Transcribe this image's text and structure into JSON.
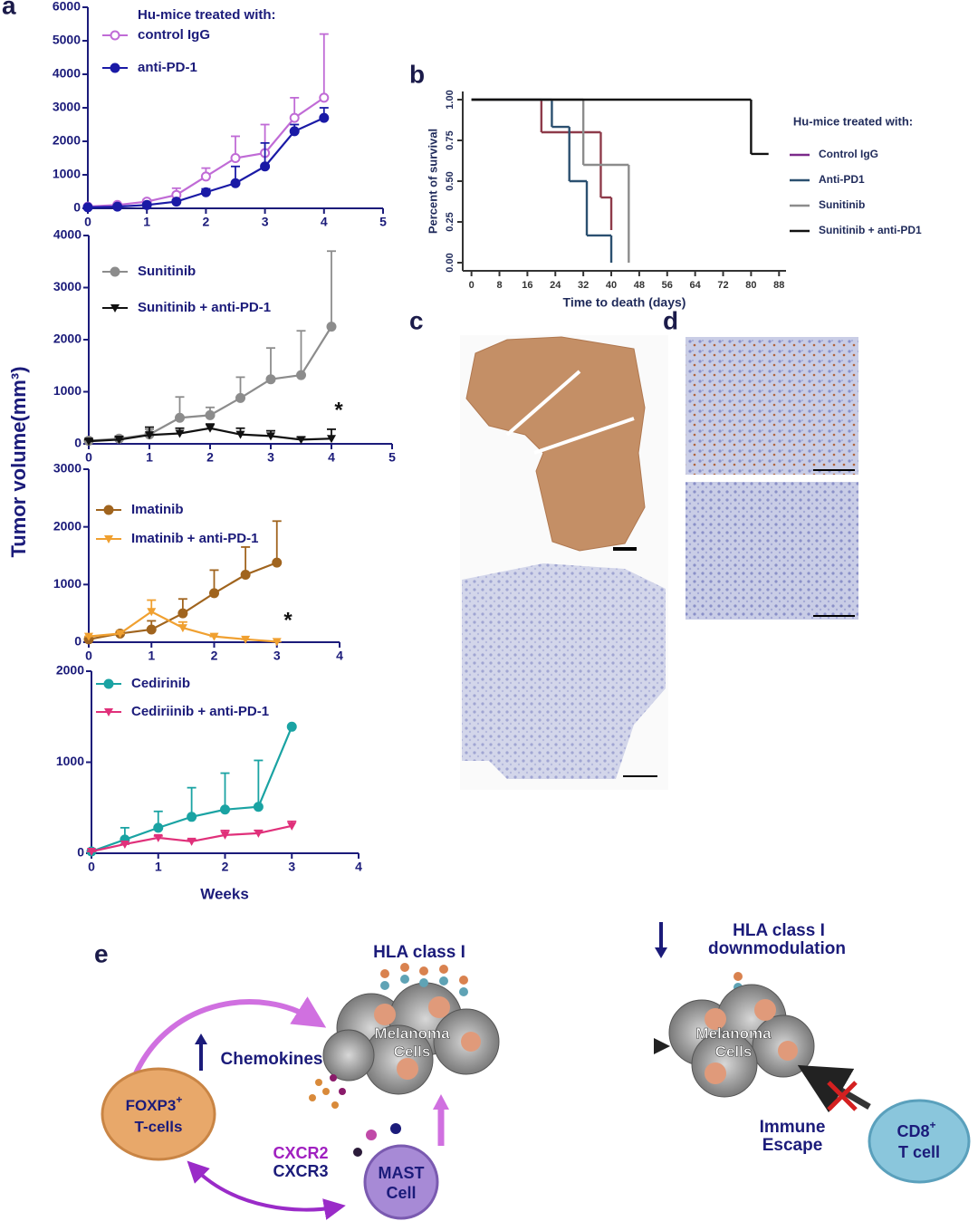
{
  "panels": [
    "a",
    "b",
    "c",
    "d",
    "e"
  ],
  "shared_ylabel": "Tumor volume(mm³)",
  "chart_data": [
    {
      "type": "line",
      "legend_title": "Hu-mice treated with:",
      "x": [
        0,
        0.5,
        1,
        1.5,
        2,
        2.5,
        3,
        3.5,
        4
      ],
      "xlim": [
        0,
        5
      ],
      "xticks": [
        0,
        1,
        2,
        3,
        4,
        5
      ],
      "ylim": [
        0,
        6000
      ],
      "yticks": [
        0,
        1000,
        2000,
        3000,
        4000,
        5000,
        6000
      ],
      "series": [
        {
          "name": "control IgG",
          "color": "#c06bd6",
          "marker": "circle-open",
          "values": [
            50,
            100,
            200,
            400,
            950,
            1500,
            1650,
            2700,
            3300
          ],
          "errors": [
            20,
            40,
            60,
            200,
            250,
            650,
            850,
            600,
            1900
          ]
        },
        {
          "name": "anti-PD-1",
          "color": "#1a1aa6",
          "marker": "circle",
          "values": [
            30,
            50,
            100,
            200,
            480,
            750,
            1250,
            2300,
            2700
          ],
          "errors": [
            10,
            20,
            30,
            60,
            100,
            500,
            700,
            200,
            300
          ]
        }
      ]
    },
    {
      "type": "line",
      "annotation": "*",
      "x": [
        0,
        0.5,
        1,
        1.5,
        2,
        2.5,
        3,
        3.5,
        4
      ],
      "xlim": [
        0,
        5
      ],
      "xticks": [
        0,
        1,
        2,
        3,
        4,
        5
      ],
      "ylim": [
        0,
        4000
      ],
      "yticks": [
        0,
        1000,
        2000,
        3000,
        4000
      ],
      "series": [
        {
          "name": "Sunitinib",
          "color": "#8c8c8c",
          "marker": "circle",
          "values": [
            60,
            100,
            180,
            500,
            550,
            880,
            1240,
            1320,
            2250
          ],
          "errors": [
            20,
            50,
            100,
            400,
            150,
            400,
            600,
            850,
            1450
          ]
        },
        {
          "name": "Sunitinib + anti-PD-1",
          "color": "#111111",
          "marker": "triangle-down",
          "values": [
            50,
            80,
            170,
            200,
            300,
            180,
            150,
            80,
            100
          ],
          "errors": [
            30,
            60,
            150,
            100,
            80,
            120,
            100,
            50,
            180
          ]
        }
      ]
    },
    {
      "type": "line",
      "annotation": "*",
      "x": [
        0,
        0.5,
        1,
        1.5,
        2,
        2.5,
        3
      ],
      "xlim": [
        0,
        4
      ],
      "xticks": [
        0,
        1,
        2,
        3,
        4
      ],
      "ylim": [
        0,
        3000
      ],
      "yticks": [
        0,
        1000,
        2000,
        3000
      ],
      "series": [
        {
          "name": "Imatinib",
          "color": "#a0641e",
          "marker": "circle",
          "values": [
            50,
            150,
            220,
            500,
            850,
            1170,
            1380
          ],
          "errors": [
            0,
            0,
            150,
            250,
            400,
            480,
            720
          ]
        },
        {
          "name": "Imatinib + anti-PD-1",
          "color": "#f0a030",
          "marker": "triangle-down",
          "values": [
            100,
            150,
            530,
            250,
            100,
            50,
            10
          ],
          "errors": [
            0,
            0,
            200,
            100,
            0,
            0,
            0
          ]
        }
      ]
    },
    {
      "type": "line",
      "xlabel": "Weeks",
      "x": [
        0,
        0.5,
        1,
        1.5,
        2,
        2.5,
        3
      ],
      "xlim": [
        0,
        4
      ],
      "xticks": [
        0,
        1,
        2,
        3,
        4
      ],
      "ylim": [
        0,
        2000
      ],
      "yticks": [
        0,
        1000,
        2000
      ],
      "series": [
        {
          "name": "Cedirinib",
          "color": "#1aa3a3",
          "marker": "circle",
          "values": [
            20,
            150,
            280,
            400,
            480,
            510,
            1390
          ],
          "errors": [
            0,
            130,
            180,
            320,
            400,
            510,
            0
          ]
        },
        {
          "name": "Cediriinib + anti-PD-1",
          "color": "#e0307a",
          "marker": "triangle-down",
          "values": [
            20,
            100,
            170,
            130,
            200,
            220,
            300
          ],
          "errors": [
            0,
            0,
            20,
            20,
            50,
            30,
            50
          ]
        }
      ]
    },
    {
      "type": "step",
      "xlabel": "Time to death (days)",
      "ylabel": "Percent of survival",
      "legend_title": "Hu-mice treated with:",
      "xlim": [
        -2.5,
        90
      ],
      "xticks": [
        0,
        8,
        16,
        24,
        32,
        40,
        48,
        56,
        64,
        72,
        80,
        88
      ],
      "ylim": [
        -0.05,
        1.05
      ],
      "yticks": [
        {
          "value": 0,
          "label": "0.00"
        },
        {
          "value": 0.25,
          "label": "0.25"
        },
        {
          "value": 0.5,
          "label": "0.50"
        },
        {
          "value": 0.75,
          "label": "0.75"
        },
        {
          "value": 1,
          "label": "1.00"
        }
      ],
      "series": [
        {
          "name": "Control IgG",
          "color": "#8e3b4a",
          "legend_color": "#7b2a8a",
          "x": [
            0,
            20,
            37,
            40
          ],
          "values": [
            1,
            0.8,
            0.4,
            0.2
          ]
        },
        {
          "name": "Anti-PD1",
          "color": "#2b5070",
          "x": [
            0,
            23,
            28,
            33,
            40
          ],
          "values": [
            1,
            0.833,
            0.5,
            0.167,
            0
          ]
        },
        {
          "name": "Sunitinib",
          "color": "#8c8c8c",
          "x": [
            0,
            32,
            45
          ],
          "values": [
            1,
            0.6,
            0
          ]
        },
        {
          "name": "Sunitinib + anti-PD1",
          "color": "#111111",
          "x": [
            0,
            80,
            85
          ],
          "values": [
            1,
            0.667,
            0.667
          ]
        }
      ]
    }
  ],
  "diagram": {
    "hla_top": "HLA class I",
    "hla_down": [
      "HLA class I",
      "downmodulation"
    ],
    "melanoma_1": [
      "Melanoma",
      "Cells"
    ],
    "melanoma_2": [
      "Melanoma",
      "Cells"
    ],
    "chemokines": "Chemokines",
    "foxp3": [
      "FOXP3",
      "+",
      "T-cells"
    ],
    "cxcr": [
      "CXCR2",
      "CXCR3"
    ],
    "mast": [
      "MAST",
      "Cell"
    ],
    "escape": [
      "Immune",
      "Escape"
    ],
    "cd8": [
      "CD8",
      "+",
      "T cell"
    ]
  }
}
